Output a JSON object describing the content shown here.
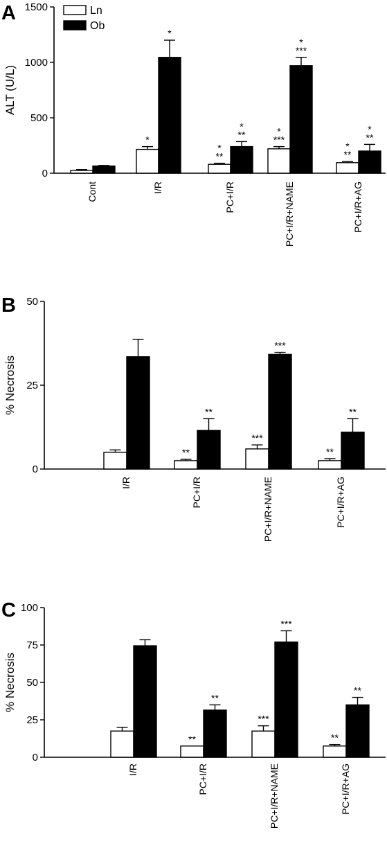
{
  "chart_data": [
    {
      "panel": "A",
      "type": "bar",
      "ylabel": "ALT (U/L)",
      "ylim": [
        0,
        1500
      ],
      "yticks": [
        0,
        500,
        1000,
        1500
      ],
      "legend": {
        "placement": "top-left",
        "entries": [
          "Ln",
          "Ob"
        ]
      },
      "categories": [
        "Cont",
        "I/R",
        "PC+I/R",
        "PC+I/R+NAME",
        "PC+I/R+AG"
      ],
      "series": [
        {
          "name": "Ln",
          "fill": "#ffffff",
          "values": [
            25,
            215,
            80,
            220,
            95
          ],
          "errors": [
            8,
            25,
            10,
            20,
            10
          ],
          "sig": [
            "",
            "*",
            "**\n*",
            "***\n*",
            "**\n*"
          ]
        },
        {
          "name": "Ob",
          "fill": "#000000",
          "values": [
            65,
            1045,
            240,
            970,
            200
          ],
          "errors": [
            5,
            155,
            45,
            75,
            60
          ],
          "sig": [
            "",
            "*",
            "**\n*",
            "***\n*",
            "**\n*"
          ]
        }
      ]
    },
    {
      "panel": "B",
      "type": "bar",
      "ylabel": "% Necrosis",
      "ylim": [
        0,
        50
      ],
      "yticks": [
        0,
        25,
        50
      ],
      "categories": [
        "I/R",
        "PC+I/R",
        "PC+I/R+NAME",
        "PC+I/R+AG"
      ],
      "series": [
        {
          "name": "Ln",
          "fill": "#ffffff",
          "values": [
            5,
            2.5,
            6,
            2.5
          ],
          "errors": [
            0.7,
            0.4,
            1.2,
            0.6
          ],
          "sig": [
            "",
            "**",
            "***",
            "**"
          ]
        },
        {
          "name": "Ob",
          "fill": "#000000",
          "values": [
            33.5,
            11.5,
            34.2,
            11
          ],
          "errors": [
            5.2,
            3.5,
            0.6,
            4
          ],
          "sig": [
            "",
            "**",
            "***",
            "**"
          ]
        }
      ]
    },
    {
      "panel": "C",
      "type": "bar",
      "ylabel": "% Necrosis",
      "ylim": [
        0,
        100
      ],
      "yticks": [
        0,
        25,
        50,
        75,
        100
      ],
      "categories": [
        "I/R",
        "PC+I/R",
        "PC+I/R+NAME",
        "PC+I/R+AG"
      ],
      "series": [
        {
          "name": "Ln",
          "fill": "#ffffff",
          "values": [
            17.5,
            7.5,
            17.5,
            7.5
          ],
          "errors": [
            2.5,
            0,
            3.5,
            1
          ],
          "sig": [
            "",
            "**",
            "***",
            "**"
          ]
        },
        {
          "name": "Ob",
          "fill": "#000000",
          "values": [
            74.5,
            31.5,
            77,
            35
          ],
          "errors": [
            4,
            3.5,
            7.5,
            5
          ],
          "sig": [
            "",
            "**",
            "***",
            "**"
          ]
        }
      ]
    }
  ]
}
